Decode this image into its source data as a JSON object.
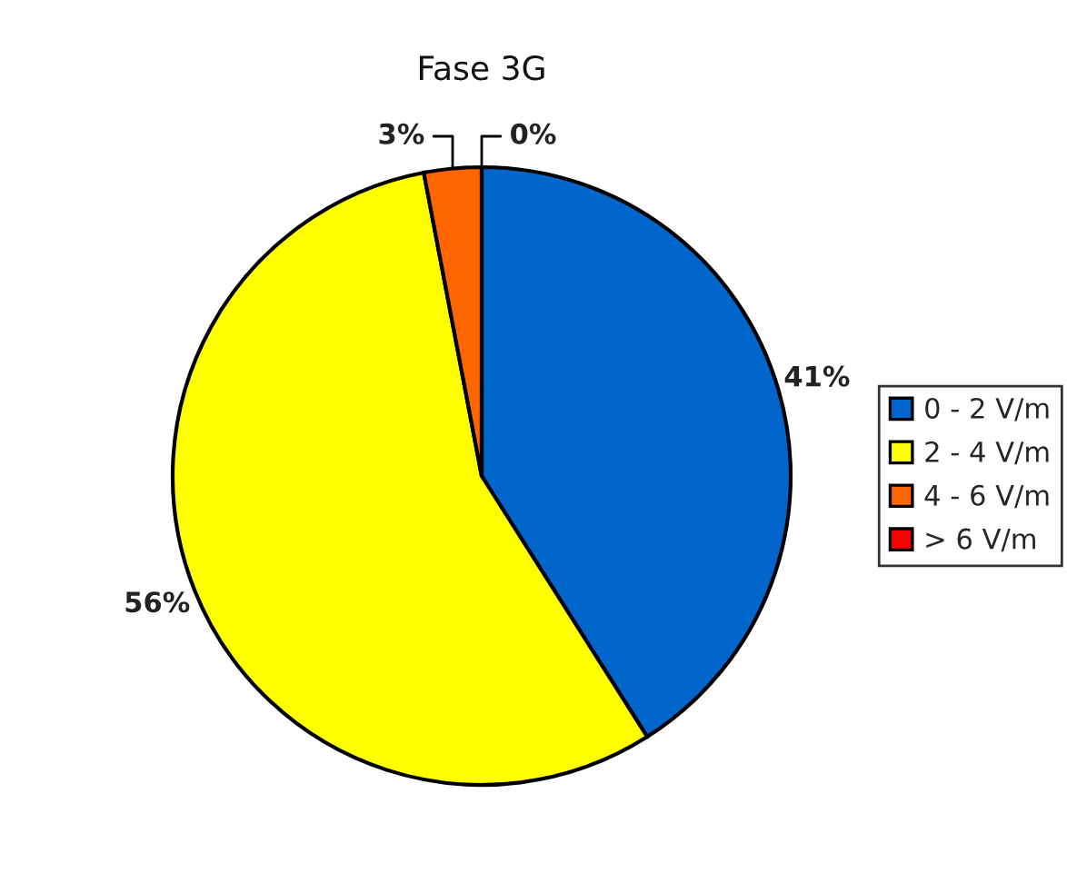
{
  "chart_data": {
    "type": "pie",
    "title": "Fase 3G",
    "categories": [
      "0 - 2 V/m",
      "2 - 4 V/m",
      "4 - 6 V/m",
      "> 6 V/m"
    ],
    "values": [
      41,
      56,
      3,
      0
    ],
    "colors": [
      "#0066cc",
      "#ffff00",
      "#ff6600",
      "#ff0000"
    ],
    "value_labels": [
      "41%",
      "56%",
      "3%",
      "0%"
    ],
    "legend": "right"
  }
}
